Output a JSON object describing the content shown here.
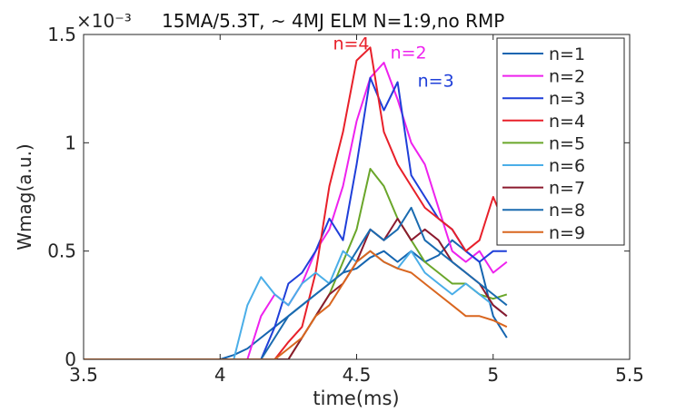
{
  "chart_data": {
    "type": "line",
    "title": "15MA/5.3T, ~ 4MJ ELM N=1:9,no RMP",
    "y_exponent": "×10⁻³",
    "xlabel": "time(ms)",
    "ylabel": "Wmag(a.u.)",
    "xlim": [
      3.5,
      5.5
    ],
    "ylim": [
      0,
      1.5
    ],
    "x_ticks": [
      3.5,
      4,
      4.5,
      5,
      5.5
    ],
    "x_tick_labels": [
      "3.5",
      "4",
      "4.5",
      "5",
      "5.5"
    ],
    "y_ticks": [
      0,
      0.5,
      1,
      1.5
    ],
    "y_tick_labels": [
      "0",
      "0.5",
      "1",
      "1.5"
    ],
    "grid": false,
    "legend_position": "top-right",
    "annotations": [
      {
        "text": "n=4",
        "x": 4.48,
        "y": 1.43,
        "color": "#e8202a"
      },
      {
        "text": "n=2",
        "x": 4.69,
        "y": 1.39,
        "color": "#ee22ee"
      },
      {
        "text": "n=3",
        "x": 4.79,
        "y": 1.26,
        "color": "#1f3fd9"
      }
    ],
    "series": [
      {
        "name": "n=1",
        "color": "#1565b0",
        "x": [
          3.5,
          4.0,
          4.05,
          4.1,
          4.15,
          4.2,
          4.25,
          4.3,
          4.35,
          4.4,
          4.45,
          4.5,
          4.55,
          4.6,
          4.65,
          4.7,
          4.75,
          4.8,
          4.85,
          4.9,
          4.95,
          5.0,
          5.05
        ],
        "y": [
          0,
          0,
          0.02,
          0.05,
          0.1,
          0.15,
          0.2,
          0.25,
          0.3,
          0.35,
          0.4,
          0.42,
          0.47,
          0.5,
          0.45,
          0.5,
          0.45,
          0.48,
          0.55,
          0.5,
          0.45,
          0.2,
          0.1
        ]
      },
      {
        "name": "n=2",
        "color": "#ee22ee",
        "x": [
          3.5,
          4.1,
          4.15,
          4.2,
          4.25,
          4.3,
          4.35,
          4.4,
          4.45,
          4.5,
          4.55,
          4.6,
          4.65,
          4.7,
          4.75,
          4.8,
          4.85,
          4.9,
          4.95,
          5.0,
          5.05
        ],
        "y": [
          0,
          0,
          0.2,
          0.3,
          0.25,
          0.35,
          0.5,
          0.6,
          0.8,
          1.1,
          1.3,
          1.37,
          1.2,
          1.0,
          0.9,
          0.7,
          0.5,
          0.45,
          0.5,
          0.4,
          0.45
        ]
      },
      {
        "name": "n=3",
        "color": "#1f3fd9",
        "x": [
          3.5,
          4.15,
          4.2,
          4.25,
          4.3,
          4.35,
          4.4,
          4.45,
          4.5,
          4.55,
          4.6,
          4.65,
          4.7,
          4.75,
          4.8,
          4.85,
          4.9,
          4.95,
          5.0,
          5.05
        ],
        "y": [
          0,
          0,
          0.15,
          0.35,
          0.4,
          0.5,
          0.65,
          0.55,
          0.9,
          1.3,
          1.15,
          1.28,
          0.85,
          0.75,
          0.65,
          0.6,
          0.5,
          0.45,
          0.5,
          0.5
        ]
      },
      {
        "name": "n=4",
        "color": "#e8202a",
        "x": [
          3.5,
          4.2,
          4.25,
          4.3,
          4.35,
          4.4,
          4.45,
          4.5,
          4.55,
          4.6,
          4.65,
          4.7,
          4.75,
          4.8,
          4.85,
          4.9,
          4.95,
          5.0,
          5.05
        ],
        "y": [
          0,
          0,
          0.08,
          0.15,
          0.4,
          0.8,
          1.05,
          1.38,
          1.44,
          1.05,
          0.9,
          0.8,
          0.7,
          0.65,
          0.6,
          0.5,
          0.55,
          0.75,
          0.6
        ]
      },
      {
        "name": "n=5",
        "color": "#6aa62a",
        "x": [
          3.5,
          4.25,
          4.3,
          4.35,
          4.4,
          4.45,
          4.5,
          4.55,
          4.6,
          4.65,
          4.7,
          4.75,
          4.8,
          4.85,
          4.9,
          4.95,
          5.0,
          5.05
        ],
        "y": [
          0,
          0,
          0.1,
          0.2,
          0.3,
          0.45,
          0.6,
          0.88,
          0.8,
          0.65,
          0.55,
          0.45,
          0.4,
          0.35,
          0.35,
          0.3,
          0.28,
          0.3
        ]
      },
      {
        "name": "n=6",
        "color": "#4aaee8",
        "x": [
          3.5,
          4.05,
          4.1,
          4.15,
          4.2,
          4.25,
          4.3,
          4.35,
          4.4,
          4.45,
          4.5,
          4.55,
          4.6,
          4.65,
          4.7,
          4.75,
          4.8,
          4.85,
          4.9,
          4.95,
          5.0,
          5.05
        ],
        "y": [
          0,
          0,
          0.25,
          0.38,
          0.3,
          0.25,
          0.35,
          0.4,
          0.35,
          0.5,
          0.45,
          0.5,
          0.45,
          0.42,
          0.5,
          0.4,
          0.35,
          0.3,
          0.35,
          0.3,
          0.25,
          0.2
        ]
      },
      {
        "name": "n=7",
        "color": "#8b1a2e",
        "x": [
          3.5,
          4.25,
          4.3,
          4.35,
          4.4,
          4.45,
          4.5,
          4.55,
          4.6,
          4.65,
          4.7,
          4.75,
          4.8,
          4.85,
          4.9,
          4.95,
          5.0,
          5.05
        ],
        "y": [
          0,
          0,
          0.1,
          0.2,
          0.3,
          0.35,
          0.45,
          0.6,
          0.55,
          0.65,
          0.55,
          0.6,
          0.55,
          0.45,
          0.4,
          0.35,
          0.25,
          0.2
        ]
      },
      {
        "name": "n=8",
        "color": "#1a6bb0",
        "x": [
          3.5,
          4.15,
          4.2,
          4.25,
          4.3,
          4.35,
          4.4,
          4.45,
          4.5,
          4.55,
          4.6,
          4.65,
          4.7,
          4.75,
          4.8,
          4.85,
          4.9,
          4.95,
          5.0,
          5.05
        ],
        "y": [
          0,
          0,
          0.1,
          0.2,
          0.25,
          0.3,
          0.35,
          0.4,
          0.5,
          0.6,
          0.55,
          0.6,
          0.7,
          0.55,
          0.5,
          0.45,
          0.4,
          0.35,
          0.3,
          0.25
        ]
      },
      {
        "name": "n=9",
        "color": "#d9661f",
        "x": [
          3.5,
          4.2,
          4.25,
          4.3,
          4.35,
          4.4,
          4.45,
          4.5,
          4.55,
          4.6,
          4.65,
          4.7,
          4.75,
          4.8,
          4.85,
          4.9,
          4.95,
          5.0,
          5.05
        ],
        "y": [
          0,
          0,
          0.05,
          0.1,
          0.2,
          0.25,
          0.35,
          0.45,
          0.5,
          0.45,
          0.42,
          0.4,
          0.35,
          0.3,
          0.25,
          0.2,
          0.2,
          0.18,
          0.15
        ]
      }
    ]
  }
}
